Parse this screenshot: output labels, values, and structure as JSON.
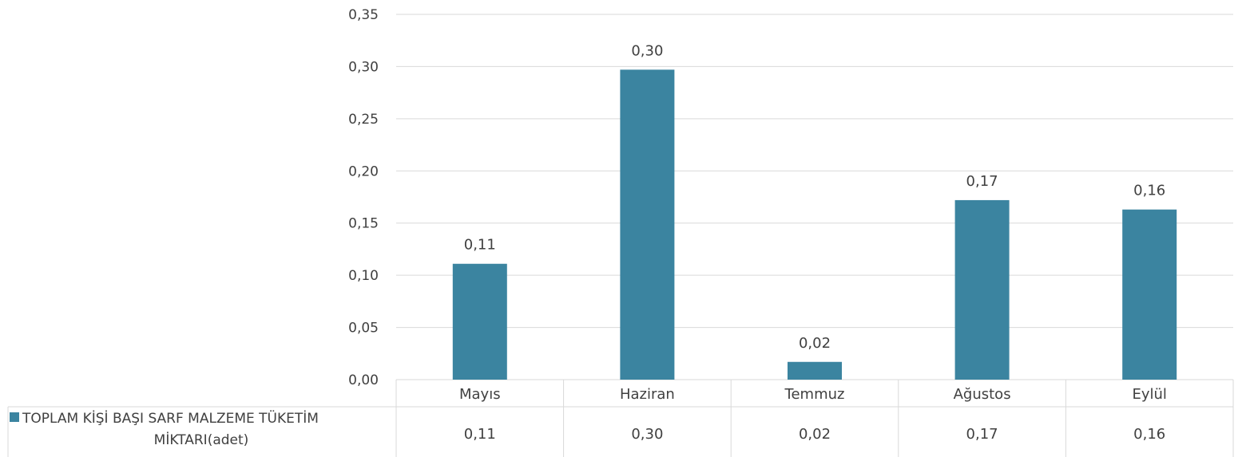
{
  "chart_data": {
    "type": "bar",
    "categories": [
      "Mayıs",
      "Haziran",
      "Temmuz",
      "Ağustos",
      "Eylül"
    ],
    "series": [
      {
        "name": "TOPLAM KİŞİ BAŞI SARF MALZEME TÜKETİM MİKTARI(adet)",
        "name_lines": [
          "TOPLAM KİŞİ BAŞI SARF MALZEME TÜKETİM",
          "MİKTARI(adet)"
        ],
        "values": [
          0.111,
          0.297,
          0.017,
          0.172,
          0.163
        ],
        "labels": [
          "0,11",
          "0,30",
          "0,02",
          "0,17",
          "0,16"
        ],
        "color": "#3b84a0"
      }
    ],
    "yticks": [
      "0,00",
      "0,05",
      "0,10",
      "0,15",
      "0,20",
      "0,25",
      "0,30",
      "0,35"
    ],
    "ylim": [
      0,
      0.35
    ],
    "grid": true,
    "legend": "data-table-left",
    "gridline_color": "#d9d9d9"
  }
}
